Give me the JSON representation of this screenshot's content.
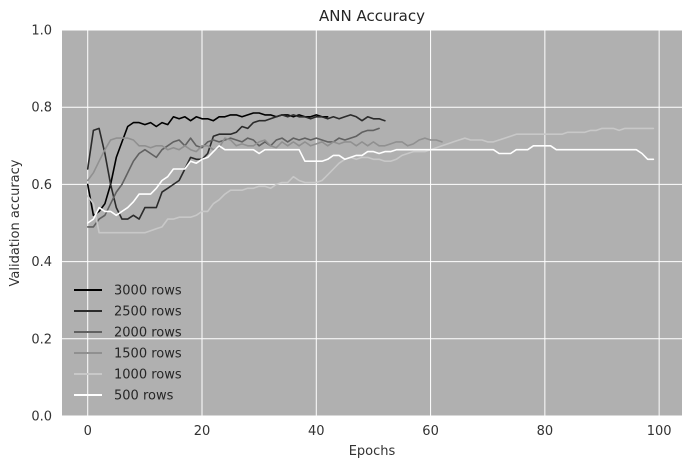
{
  "chart_data": {
    "type": "line",
    "title": "ANN Accuracy",
    "xlabel": "Epochs",
    "ylabel": "Validation accuracy",
    "xlim": [
      -4.5,
      104
    ],
    "ylim": [
      0.0,
      1.0
    ],
    "xticks": [
      0,
      20,
      40,
      60,
      80,
      100
    ],
    "yticks": [
      0.0,
      0.2,
      0.4,
      0.6,
      0.8,
      1.0
    ],
    "grid": true,
    "background_color": "#b0b0b0",
    "grid_color": "#ffffff",
    "legend_position": "lower-left",
    "series": [
      {
        "name": "3000 rows",
        "color": "#000000",
        "x": [
          0,
          1,
          2,
          3,
          4,
          5,
          6,
          7,
          8,
          9,
          10,
          11,
          12,
          13,
          14,
          15,
          16,
          17,
          18,
          19,
          20,
          21,
          22,
          23,
          24,
          25,
          26,
          27,
          28,
          29,
          30,
          31,
          32,
          33,
          34,
          35,
          36,
          37,
          38,
          39,
          40,
          41,
          42
        ],
        "y": [
          0.6,
          0.52,
          0.53,
          0.55,
          0.6,
          0.67,
          0.71,
          0.75,
          0.76,
          0.76,
          0.755,
          0.76,
          0.75,
          0.76,
          0.755,
          0.775,
          0.77,
          0.775,
          0.765,
          0.775,
          0.77,
          0.77,
          0.765,
          0.775,
          0.775,
          0.78,
          0.78,
          0.775,
          0.78,
          0.785,
          0.785,
          0.78,
          0.78,
          0.775,
          0.78,
          0.78,
          0.775,
          0.78,
          0.775,
          0.775,
          0.78,
          0.775,
          0.775
        ]
      },
      {
        "name": "2500 rows",
        "color": "#2b2b2b",
        "x": [
          0,
          1,
          2,
          3,
          4,
          5,
          6,
          7,
          8,
          9,
          10,
          11,
          12,
          13,
          14,
          15,
          16,
          17,
          18,
          19,
          20,
          21,
          22,
          23,
          24,
          25,
          26,
          27,
          28,
          29,
          30,
          31,
          32,
          33,
          34,
          35,
          36,
          37,
          38,
          39,
          40,
          41,
          42,
          43,
          44,
          45,
          46,
          47,
          48,
          49,
          50,
          51,
          52
        ],
        "y": [
          0.64,
          0.74,
          0.745,
          0.68,
          0.6,
          0.54,
          0.51,
          0.51,
          0.52,
          0.51,
          0.54,
          0.54,
          0.54,
          0.58,
          0.59,
          0.6,
          0.61,
          0.64,
          0.67,
          0.665,
          0.665,
          0.68,
          0.725,
          0.73,
          0.73,
          0.73,
          0.735,
          0.75,
          0.745,
          0.76,
          0.765,
          0.765,
          0.77,
          0.775,
          0.78,
          0.775,
          0.78,
          0.775,
          0.775,
          0.77,
          0.775,
          0.775,
          0.77,
          0.775,
          0.77,
          0.775,
          0.78,
          0.775,
          0.765,
          0.775,
          0.77,
          0.77,
          0.765
        ]
      },
      {
        "name": "2000 rows",
        "color": "#616161",
        "x": [
          0,
          1,
          2,
          3,
          4,
          5,
          6,
          7,
          8,
          9,
          10,
          11,
          12,
          13,
          14,
          15,
          16,
          17,
          18,
          19,
          20,
          21,
          22,
          23,
          24,
          25,
          26,
          27,
          28,
          29,
          30,
          31,
          32,
          33,
          34,
          35,
          36,
          37,
          38,
          39,
          40,
          41,
          42,
          43,
          44,
          45,
          46,
          47,
          48,
          49,
          50,
          51
        ],
        "y": [
          0.49,
          0.49,
          0.51,
          0.52,
          0.55,
          0.58,
          0.6,
          0.63,
          0.66,
          0.68,
          0.69,
          0.68,
          0.67,
          0.69,
          0.7,
          0.71,
          0.715,
          0.7,
          0.72,
          0.7,
          0.695,
          0.71,
          0.715,
          0.71,
          0.715,
          0.72,
          0.715,
          0.71,
          0.72,
          0.715,
          0.7,
          0.71,
          0.7,
          0.715,
          0.72,
          0.71,
          0.72,
          0.715,
          0.72,
          0.715,
          0.72,
          0.715,
          0.71,
          0.71,
          0.72,
          0.715,
          0.72,
          0.725,
          0.735,
          0.74,
          0.74,
          0.745
        ]
      },
      {
        "name": "1500 rows",
        "color": "#909090",
        "x": [
          0,
          1,
          2,
          3,
          4,
          5,
          6,
          7,
          8,
          9,
          10,
          11,
          12,
          13,
          14,
          15,
          16,
          17,
          18,
          19,
          20,
          21,
          22,
          23,
          24,
          25,
          26,
          27,
          28,
          29,
          30,
          31,
          32,
          33,
          34,
          35,
          36,
          37,
          38,
          39,
          40,
          41,
          42,
          43,
          44,
          45,
          46,
          47,
          48,
          49,
          50,
          51,
          52,
          53,
          54,
          55,
          56,
          57,
          58,
          59,
          60,
          61,
          62
        ],
        "y": [
          0.61,
          0.63,
          0.66,
          0.69,
          0.715,
          0.72,
          0.72,
          0.72,
          0.715,
          0.7,
          0.7,
          0.695,
          0.7,
          0.7,
          0.69,
          0.695,
          0.69,
          0.7,
          0.69,
          0.685,
          0.7,
          0.7,
          0.69,
          0.695,
          0.72,
          0.715,
          0.7,
          0.705,
          0.7,
          0.7,
          0.71,
          0.715,
          0.7,
          0.695,
          0.71,
          0.7,
          0.71,
          0.7,
          0.71,
          0.7,
          0.705,
          0.71,
          0.7,
          0.71,
          0.705,
          0.71,
          0.71,
          0.7,
          0.71,
          0.7,
          0.71,
          0.7,
          0.7,
          0.705,
          0.71,
          0.71,
          0.7,
          0.705,
          0.715,
          0.72,
          0.715,
          0.715,
          0.71
        ]
      },
      {
        "name": "1000 rows",
        "color": "#c8c8c8",
        "x": [
          0,
          1,
          2,
          3,
          4,
          5,
          6,
          7,
          8,
          9,
          10,
          11,
          12,
          13,
          14,
          15,
          16,
          17,
          18,
          19,
          20,
          21,
          22,
          23,
          24,
          25,
          26,
          27,
          28,
          29,
          30,
          31,
          32,
          33,
          34,
          35,
          36,
          37,
          38,
          39,
          40,
          41,
          42,
          43,
          44,
          45,
          46,
          47,
          48,
          49,
          50,
          51,
          52,
          53,
          54,
          55,
          56,
          57,
          58,
          59,
          60,
          61,
          62,
          63,
          64,
          65,
          66,
          67,
          68,
          69,
          70,
          71,
          72,
          73,
          74,
          75,
          76,
          77,
          78,
          79,
          80,
          81,
          82,
          83,
          84,
          85,
          86,
          87,
          88,
          89,
          90,
          91,
          92,
          93,
          94,
          95,
          96,
          97,
          98,
          99
        ],
        "y": [
          0.57,
          0.55,
          0.475,
          0.475,
          0.475,
          0.475,
          0.475,
          0.475,
          0.475,
          0.475,
          0.475,
          0.48,
          0.485,
          0.49,
          0.51,
          0.51,
          0.515,
          0.515,
          0.515,
          0.52,
          0.53,
          0.53,
          0.55,
          0.56,
          0.575,
          0.585,
          0.585,
          0.585,
          0.59,
          0.59,
          0.595,
          0.595,
          0.59,
          0.6,
          0.605,
          0.605,
          0.62,
          0.61,
          0.605,
          0.605,
          0.605,
          0.61,
          0.625,
          0.64,
          0.655,
          0.665,
          0.67,
          0.665,
          0.67,
          0.67,
          0.665,
          0.665,
          0.66,
          0.66,
          0.665,
          0.675,
          0.68,
          0.685,
          0.685,
          0.685,
          0.69,
          0.695,
          0.7,
          0.705,
          0.71,
          0.715,
          0.72,
          0.715,
          0.715,
          0.715,
          0.71,
          0.71,
          0.715,
          0.72,
          0.725,
          0.73,
          0.73,
          0.73,
          0.73,
          0.73,
          0.73,
          0.73,
          0.73,
          0.73,
          0.735,
          0.735,
          0.735,
          0.735,
          0.74,
          0.74,
          0.745,
          0.745,
          0.745,
          0.74,
          0.745,
          0.745,
          0.745,
          0.745,
          0.745,
          0.745
        ]
      },
      {
        "name": "500 rows",
        "color": "#ffffff",
        "x": [
          0,
          1,
          2,
          3,
          4,
          5,
          6,
          7,
          8,
          9,
          10,
          11,
          12,
          13,
          14,
          15,
          16,
          17,
          18,
          19,
          20,
          21,
          22,
          23,
          24,
          25,
          26,
          27,
          28,
          29,
          30,
          31,
          32,
          33,
          34,
          35,
          36,
          37,
          38,
          39,
          40,
          41,
          42,
          43,
          44,
          45,
          46,
          47,
          48,
          49,
          50,
          51,
          52,
          53,
          54,
          55,
          56,
          57,
          58,
          59,
          60,
          61,
          62,
          63,
          64,
          65,
          66,
          67,
          68,
          69,
          70,
          71,
          72,
          73,
          74,
          75,
          76,
          77,
          78,
          79,
          80,
          81,
          82,
          83,
          84,
          85,
          86,
          87,
          88,
          89,
          90,
          91,
          92,
          93,
          94,
          95,
          96,
          97,
          98,
          99
        ],
        "y": [
          0.5,
          0.51,
          0.54,
          0.53,
          0.53,
          0.52,
          0.53,
          0.54,
          0.555,
          0.575,
          0.575,
          0.575,
          0.59,
          0.61,
          0.62,
          0.64,
          0.64,
          0.64,
          0.66,
          0.655,
          0.665,
          0.67,
          0.685,
          0.7,
          0.69,
          0.69,
          0.69,
          0.69,
          0.69,
          0.69,
          0.68,
          0.69,
          0.69,
          0.69,
          0.69,
          0.69,
          0.69,
          0.69,
          0.66,
          0.66,
          0.66,
          0.66,
          0.665,
          0.675,
          0.675,
          0.665,
          0.67,
          0.675,
          0.675,
          0.685,
          0.685,
          0.68,
          0.685,
          0.685,
          0.69,
          0.69,
          0.69,
          0.69,
          0.69,
          0.69,
          0.69,
          0.69,
          0.69,
          0.69,
          0.69,
          0.69,
          0.69,
          0.69,
          0.69,
          0.69,
          0.69,
          0.69,
          0.68,
          0.68,
          0.68,
          0.69,
          0.69,
          0.69,
          0.7,
          0.7,
          0.7,
          0.7,
          0.69,
          0.69,
          0.69,
          0.69,
          0.69,
          0.69,
          0.69,
          0.69,
          0.69,
          0.69,
          0.69,
          0.69,
          0.69,
          0.69,
          0.69,
          0.68,
          0.665,
          0.665
        ]
      }
    ]
  }
}
